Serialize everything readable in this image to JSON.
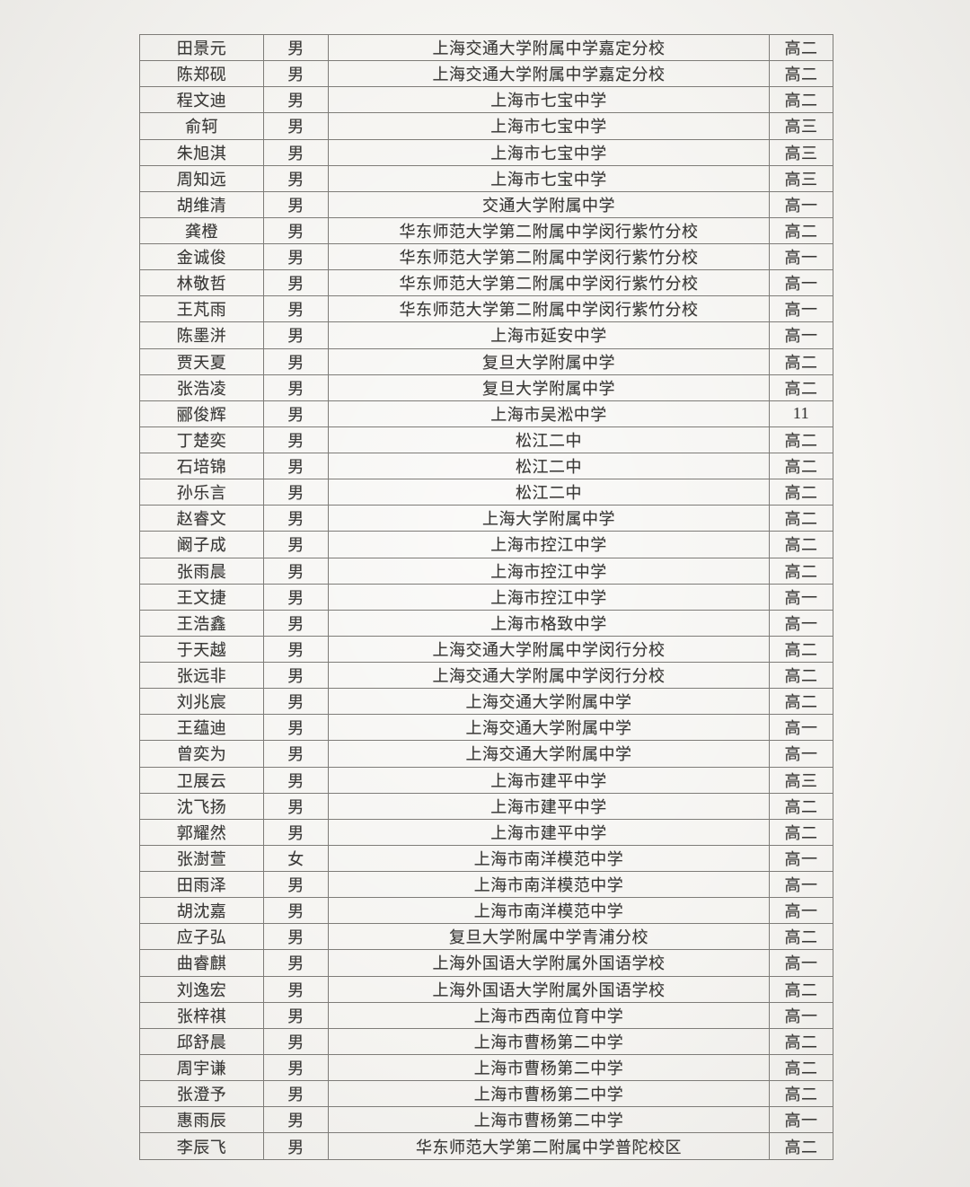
{
  "page": {
    "kind": "scanned student roster table",
    "background_color": "#f5f4f1",
    "border_color": "#7e7c78",
    "text_color": "#3a3937"
  },
  "table": {
    "column_keys": [
      "name",
      "gender",
      "school",
      "grade"
    ],
    "rows": [
      [
        "田景元",
        "男",
        "上海交通大学附属中学嘉定分校",
        "高二"
      ],
      [
        "陈郑砚",
        "男",
        "上海交通大学附属中学嘉定分校",
        "高二"
      ],
      [
        "程文迪",
        "男",
        "上海市七宝中学",
        "高二"
      ],
      [
        "俞轲",
        "男",
        "上海市七宝中学",
        "高三"
      ],
      [
        "朱旭淇",
        "男",
        "上海市七宝中学",
        "高三"
      ],
      [
        "周知远",
        "男",
        "上海市七宝中学",
        "高三"
      ],
      [
        "胡维清",
        "男",
        "交通大学附属中学",
        "高一"
      ],
      [
        "龚橙",
        "男",
        "华东师范大学第二附属中学闵行紫竹分校",
        "高二"
      ],
      [
        "金诚俊",
        "男",
        "华东师范大学第二附属中学闵行紫竹分校",
        "高一"
      ],
      [
        "林敬哲",
        "男",
        "华东师范大学第二附属中学闵行紫竹分校",
        "高一"
      ],
      [
        "王芃雨",
        "男",
        "华东师范大学第二附属中学闵行紫竹分校",
        "高一"
      ],
      [
        "陈墨洴",
        "男",
        "上海市延安中学",
        "高一"
      ],
      [
        "贾天夏",
        "男",
        "复旦大学附属中学",
        "高二"
      ],
      [
        "张浩凌",
        "男",
        "复旦大学附属中学",
        "高二"
      ],
      [
        "郦俊辉",
        "男",
        "上海市吴淞中学",
        "11"
      ],
      [
        "丁楚奕",
        "男",
        "松江二中",
        "高二"
      ],
      [
        "石培锦",
        "男",
        "松江二中",
        "高二"
      ],
      [
        "孙乐言",
        "男",
        "松江二中",
        "高二"
      ],
      [
        "赵睿文",
        "男",
        "上海大学附属中学",
        "高二"
      ],
      [
        "阚子成",
        "男",
        "上海市控江中学",
        "高二"
      ],
      [
        "张雨晨",
        "男",
        "上海市控江中学",
        "高二"
      ],
      [
        "王文捷",
        "男",
        "上海市控江中学",
        "高一"
      ],
      [
        "王浩鑫",
        "男",
        "上海市格致中学",
        "高一"
      ],
      [
        "于天越",
        "男",
        "上海交通大学附属中学闵行分校",
        "高二"
      ],
      [
        "张远非",
        "男",
        "上海交通大学附属中学闵行分校",
        "高二"
      ],
      [
        "刘兆宸",
        "男",
        "上海交通大学附属中学",
        "高二"
      ],
      [
        "王蕴迪",
        "男",
        "上海交通大学附属中学",
        "高一"
      ],
      [
        "曾奕为",
        "男",
        "上海交通大学附属中学",
        "高一"
      ],
      [
        "卫展云",
        "男",
        "上海市建平中学",
        "高三"
      ],
      [
        "沈飞扬",
        "男",
        "上海市建平中学",
        "高二"
      ],
      [
        "郭耀然",
        "男",
        "上海市建平中学",
        "高二"
      ],
      [
        "张澍萱",
        "女",
        "上海市南洋模范中学",
        "高一"
      ],
      [
        "田雨泽",
        "男",
        "上海市南洋模范中学",
        "高一"
      ],
      [
        "胡沈嘉",
        "男",
        "上海市南洋模范中学",
        "高一"
      ],
      [
        "应子弘",
        "男",
        "复旦大学附属中学青浦分校",
        "高二"
      ],
      [
        "曲睿麒",
        "男",
        "上海外国语大学附属外国语学校",
        "高一"
      ],
      [
        "刘逸宏",
        "男",
        "上海外国语大学附属外国语学校",
        "高二"
      ],
      [
        "张梓祺",
        "男",
        "上海市西南位育中学",
        "高一"
      ],
      [
        "邱舒晨",
        "男",
        "上海市曹杨第二中学",
        "高二"
      ],
      [
        "周宇谦",
        "男",
        "上海市曹杨第二中学",
        "高二"
      ],
      [
        "张澄予",
        "男",
        "上海市曹杨第二中学",
        "高二"
      ],
      [
        "惠雨辰",
        "男",
        "上海市曹杨第二中学",
        "高一"
      ],
      [
        "李辰飞",
        "男",
        "华东师范大学第二附属中学普陀校区",
        "高二"
      ]
    ]
  }
}
